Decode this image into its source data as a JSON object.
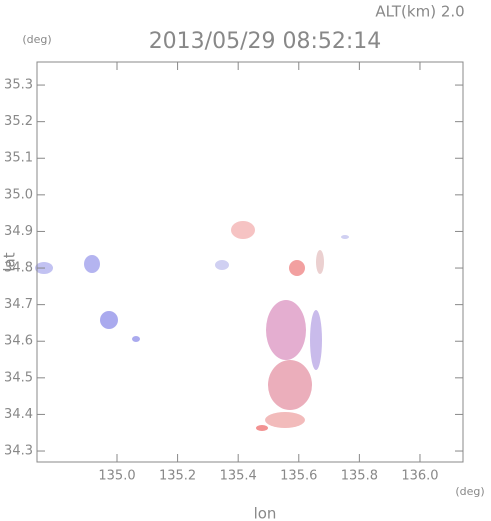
{
  "chart_data": {
    "type": "map",
    "title": "2013/05/29 08:52:14",
    "subtitle": "ALT(km) 2.0",
    "x_label": "lon",
    "y_label": "lat",
    "x_unit": "(deg)",
    "y_unit": "(deg)",
    "xlim": [
      134.736,
      136.142
    ],
    "ylim": [
      34.27,
      35.363
    ],
    "xticks": [
      {
        "value": 135,
        "label": "135.0"
      },
      135.2,
      135.4,
      135.6,
      135.8,
      {
        "value": 136,
        "label": "136.0"
      }
    ],
    "yticks": [
      34.3,
      34.4,
      34.5,
      34.6,
      34.7,
      34.8,
      34.9,
      {
        "value": 35,
        "label": "35.0"
      },
      35.1,
      35.2,
      35.3
    ]
  }
}
